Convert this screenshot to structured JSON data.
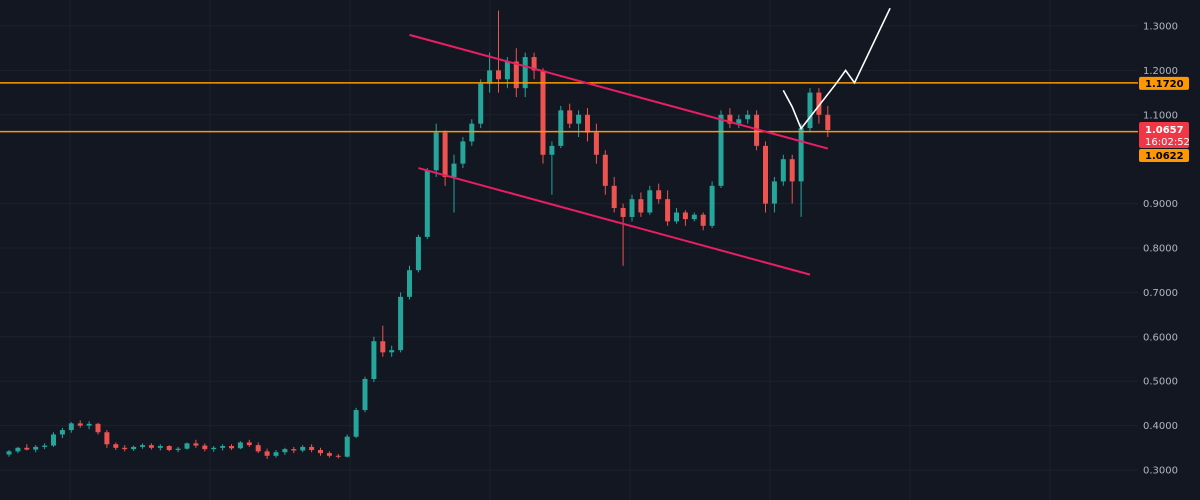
{
  "chart_data": {
    "type": "candlestick",
    "y_axis": {
      "position": "right",
      "ylim": [
        0.28,
        1.335
      ],
      "ticks": [
        "1.3000",
        "1.2000",
        "1.1000",
        "0.9000",
        "0.8000",
        "0.7000",
        "0.6000",
        "0.5000",
        "0.4000",
        "0.3000"
      ],
      "tick_values": [
        1.3,
        1.2,
        1.1,
        0.9,
        0.8,
        0.7,
        0.6,
        0.5,
        0.4,
        0.3
      ]
    },
    "grid": true,
    "colors": {
      "background": "#131722",
      "grid": "#1e222d",
      "up": "#26a69a",
      "down": "#ef5350",
      "level": "#ff9800",
      "channel": "#e91e63",
      "projection": "#ffffff",
      "price_tag": "#f23645"
    },
    "price_tag": {
      "price_label": "1.0657",
      "countdown_label": "16:02:52",
      "value": 1.0657
    },
    "horizontal_levels": [
      {
        "label": "1.1720",
        "value": 1.172
      },
      {
        "label": "1.0622",
        "value": 1.0622
      }
    ],
    "trendlines": [
      {
        "name": "channel-upper",
        "points": [
          [
            45,
            1.28
          ],
          [
            92,
            1.024
          ]
        ]
      },
      {
        "name": "channel-lower",
        "points": [
          [
            46,
            0.98
          ],
          [
            90,
            0.74
          ]
        ]
      }
    ],
    "projection_path": [
      [
        87,
        1.155
      ],
      [
        88,
        1.118
      ],
      [
        89,
        1.069
      ],
      [
        93,
        1.172
      ],
      [
        94,
        1.2
      ],
      [
        95,
        1.172
      ],
      [
        99,
        1.34
      ]
    ],
    "candles": [
      [
        0.335,
        0.345,
        0.33,
        0.342
      ],
      [
        0.342,
        0.352,
        0.338,
        0.35
      ],
      [
        0.35,
        0.358,
        0.344,
        0.346
      ],
      [
        0.346,
        0.356,
        0.34,
        0.352
      ],
      [
        0.352,
        0.36,
        0.347,
        0.355
      ],
      [
        0.355,
        0.385,
        0.352,
        0.38
      ],
      [
        0.38,
        0.395,
        0.372,
        0.39
      ],
      [
        0.39,
        0.408,
        0.384,
        0.405
      ],
      [
        0.405,
        0.412,
        0.395,
        0.4
      ],
      [
        0.4,
        0.41,
        0.392,
        0.404
      ],
      [
        0.404,
        0.406,
        0.38,
        0.385
      ],
      [
        0.385,
        0.39,
        0.35,
        0.358
      ],
      [
        0.358,
        0.362,
        0.345,
        0.35
      ],
      [
        0.35,
        0.356,
        0.342,
        0.347
      ],
      [
        0.347,
        0.355,
        0.343,
        0.352
      ],
      [
        0.352,
        0.36,
        0.348,
        0.356
      ],
      [
        0.356,
        0.36,
        0.346,
        0.35
      ],
      [
        0.35,
        0.358,
        0.344,
        0.354
      ],
      [
        0.354,
        0.356,
        0.342,
        0.345
      ],
      [
        0.345,
        0.352,
        0.34,
        0.348
      ],
      [
        0.348,
        0.362,
        0.346,
        0.36
      ],
      [
        0.36,
        0.368,
        0.35,
        0.355
      ],
      [
        0.355,
        0.36,
        0.342,
        0.347
      ],
      [
        0.347,
        0.354,
        0.341,
        0.35
      ],
      [
        0.35,
        0.358,
        0.344,
        0.354
      ],
      [
        0.354,
        0.358,
        0.345,
        0.349
      ],
      [
        0.349,
        0.365,
        0.347,
        0.362
      ],
      [
        0.362,
        0.368,
        0.352,
        0.356
      ],
      [
        0.356,
        0.362,
        0.338,
        0.342
      ],
      [
        0.342,
        0.348,
        0.325,
        0.332
      ],
      [
        0.332,
        0.345,
        0.328,
        0.34
      ],
      [
        0.34,
        0.35,
        0.334,
        0.347
      ],
      [
        0.347,
        0.352,
        0.338,
        0.344
      ],
      [
        0.344,
        0.356,
        0.34,
        0.352
      ],
      [
        0.352,
        0.358,
        0.34,
        0.345
      ],
      [
        0.345,
        0.35,
        0.332,
        0.338
      ],
      [
        0.338,
        0.342,
        0.328,
        0.332
      ],
      [
        0.332,
        0.336,
        0.326,
        0.33
      ],
      [
        0.33,
        0.38,
        0.328,
        0.375
      ],
      [
        0.375,
        0.44,
        0.372,
        0.435
      ],
      [
        0.435,
        0.51,
        0.43,
        0.505
      ],
      [
        0.505,
        0.6,
        0.498,
        0.59
      ],
      [
        0.59,
        0.625,
        0.555,
        0.565
      ],
      [
        0.565,
        0.58,
        0.555,
        0.57
      ],
      [
        0.57,
        0.7,
        0.565,
        0.69
      ],
      [
        0.69,
        0.76,
        0.684,
        0.75
      ],
      [
        0.75,
        0.83,
        0.745,
        0.825
      ],
      [
        0.825,
        0.98,
        0.82,
        0.975
      ],
      [
        0.975,
        1.08,
        0.96,
        1.06
      ],
      [
        1.06,
        1.065,
        0.94,
        0.96
      ],
      [
        0.96,
        1.01,
        0.88,
        0.99
      ],
      [
        0.99,
        1.05,
        0.98,
        1.04
      ],
      [
        1.04,
        1.09,
        1.03,
        1.08
      ],
      [
        1.08,
        1.18,
        1.07,
        1.17
      ],
      [
        1.17,
        1.24,
        1.15,
        1.2
      ],
      [
        1.2,
        1.335,
        1.15,
        1.18
      ],
      [
        1.18,
        1.23,
        1.16,
        1.22
      ],
      [
        1.22,
        1.25,
        1.14,
        1.16
      ],
      [
        1.16,
        1.24,
        1.14,
        1.23
      ],
      [
        1.23,
        1.24,
        1.18,
        1.2
      ],
      [
        1.2,
        1.205,
        0.99,
        1.01
      ],
      [
        1.01,
        1.04,
        0.92,
        1.03
      ],
      [
        1.03,
        1.12,
        1.025,
        1.11
      ],
      [
        1.11,
        1.125,
        1.07,
        1.08
      ],
      [
        1.08,
        1.11,
        1.05,
        1.1
      ],
      [
        1.1,
        1.115,
        1.04,
        1.06
      ],
      [
        1.06,
        1.08,
        0.99,
        1.01
      ],
      [
        1.01,
        1.02,
        0.92,
        0.94
      ],
      [
        0.94,
        0.96,
        0.88,
        0.89
      ],
      [
        0.89,
        0.9,
        0.76,
        0.87
      ],
      [
        0.87,
        0.92,
        0.86,
        0.91
      ],
      [
        0.91,
        0.925,
        0.87,
        0.88
      ],
      [
        0.88,
        0.94,
        0.875,
        0.93
      ],
      [
        0.93,
        0.945,
        0.9,
        0.91
      ],
      [
        0.91,
        0.93,
        0.85,
        0.86
      ],
      [
        0.86,
        0.89,
        0.855,
        0.88
      ],
      [
        0.88,
        0.885,
        0.85,
        0.865
      ],
      [
        0.865,
        0.88,
        0.86,
        0.875
      ],
      [
        0.875,
        0.88,
        0.84,
        0.85
      ],
      [
        0.85,
        0.95,
        0.845,
        0.94
      ],
      [
        0.94,
        1.11,
        0.935,
        1.1
      ],
      [
        1.1,
        1.115,
        1.07,
        1.08
      ],
      [
        1.08,
        1.1,
        1.07,
        1.09
      ],
      [
        1.09,
        1.11,
        1.08,
        1.1
      ],
      [
        1.1,
        1.11,
        1.02,
        1.03
      ],
      [
        1.03,
        1.04,
        0.88,
        0.9
      ],
      [
        0.9,
        0.96,
        0.88,
        0.95
      ],
      [
        0.95,
        1.01,
        0.94,
        1.0
      ],
      [
        1.0,
        1.01,
        0.9,
        0.95
      ],
      [
        0.95,
        1.08,
        0.87,
        1.07
      ],
      [
        1.07,
        1.16,
        1.06,
        1.15
      ],
      [
        1.15,
        1.16,
        1.08,
        1.1
      ],
      [
        1.1,
        1.12,
        1.05,
        1.0657
      ]
    ]
  }
}
